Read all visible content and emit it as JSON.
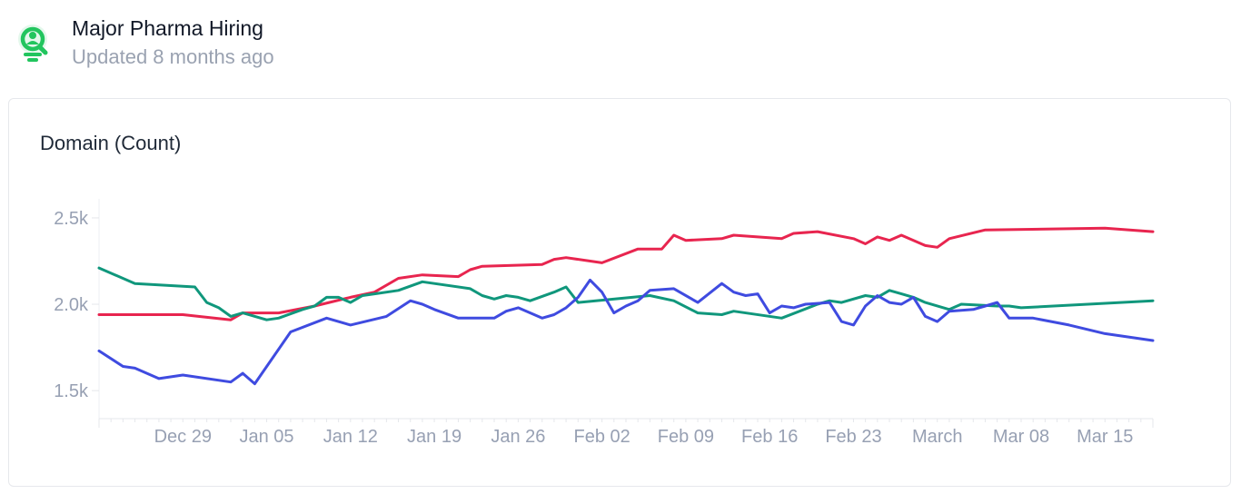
{
  "header": {
    "title": "Major Pharma Hiring",
    "subtitle": "Updated 8 months ago",
    "logo_icon": "magnifier-person-icon",
    "logo_color": "#22c55e"
  },
  "chart_data": {
    "type": "line",
    "title": "Domain (Count)",
    "x_tick_labels": [
      "Dec 29",
      "Jan 05",
      "Jan 12",
      "Jan 19",
      "Jan 26",
      "Feb 02",
      "Feb 09",
      "Feb 16",
      "Feb 23",
      "March",
      "Mar 08",
      "Mar 15"
    ],
    "y_tick_labels": [
      "2.5k",
      "2.0k",
      "1.5k"
    ],
    "y_ticks": [
      2500,
      2000,
      1500
    ],
    "ylim": [
      1380,
      2610
    ],
    "grid": false,
    "legend": "none",
    "series": [
      {
        "color": "#e8254f",
        "x": [
          "2023-12-22",
          "2023-12-29",
          "2024-01-02",
          "2024-01-03",
          "2024-01-06",
          "2024-01-09",
          "2024-01-12",
          "2024-01-14",
          "2024-01-16",
          "2024-01-18",
          "2024-01-21",
          "2024-01-22",
          "2024-01-23",
          "2024-01-28",
          "2024-01-29",
          "2024-01-30",
          "2024-02-02",
          "2024-02-05",
          "2024-02-07",
          "2024-02-08",
          "2024-02-09",
          "2024-02-12",
          "2024-02-13",
          "2024-02-17",
          "2024-02-18",
          "2024-02-20",
          "2024-02-23",
          "2024-02-24",
          "2024-02-25",
          "2024-02-26",
          "2024-02-27",
          "2024-02-29",
          "2024-03-01",
          "2024-03-02",
          "2024-03-05",
          "2024-03-15",
          "2024-03-19"
        ],
        "values": [
          1940,
          1940,
          1910,
          1950,
          1950,
          1990,
          2040,
          2070,
          2150,
          2170,
          2160,
          2200,
          2220,
          2230,
          2260,
          2270,
          2240,
          2320,
          2320,
          2400,
          2370,
          2380,
          2400,
          2380,
          2410,
          2420,
          2380,
          2350,
          2390,
          2370,
          2400,
          2340,
          2330,
          2380,
          2430,
          2440,
          2420
        ]
      },
      {
        "color": "#10977c",
        "x": [
          "2023-12-22",
          "2023-12-25",
          "2023-12-30",
          "2023-12-31",
          "2024-01-01",
          "2024-01-02",
          "2024-01-03",
          "2024-01-05",
          "2024-01-06",
          "2024-01-08",
          "2024-01-09",
          "2024-01-10",
          "2024-01-11",
          "2024-01-12",
          "2024-01-13",
          "2024-01-14",
          "2024-01-16",
          "2024-01-18",
          "2024-01-22",
          "2024-01-23",
          "2024-01-24",
          "2024-01-25",
          "2024-01-26",
          "2024-01-27",
          "2024-01-29",
          "2024-01-30",
          "2024-01-31",
          "2024-02-06",
          "2024-02-08",
          "2024-02-10",
          "2024-02-12",
          "2024-02-13",
          "2024-02-17",
          "2024-02-20",
          "2024-02-21",
          "2024-02-22",
          "2024-02-24",
          "2024-02-25",
          "2024-02-26",
          "2024-02-27",
          "2024-02-28",
          "2024-02-29",
          "2024-03-02",
          "2024-03-03",
          "2024-03-06",
          "2024-03-07",
          "2024-03-08",
          "2024-03-19"
        ],
        "values": [
          2210,
          2120,
          2100,
          2010,
          1980,
          1930,
          1950,
          1910,
          1920,
          1970,
          1990,
          2040,
          2040,
          2010,
          2050,
          2060,
          2080,
          2130,
          2090,
          2050,
          2030,
          2050,
          2040,
          2020,
          2070,
          2100,
          2010,
          2050,
          2020,
          1950,
          1940,
          1960,
          1920,
          2000,
          2020,
          2010,
          2050,
          2040,
          2080,
          2060,
          2040,
          2010,
          1970,
          2000,
          1990,
          1990,
          1980,
          2020
        ]
      },
      {
        "color": "#3f4be0",
        "x": [
          "2023-12-22",
          "2023-12-24",
          "2023-12-25",
          "2023-12-27",
          "2023-12-29",
          "2024-01-02",
          "2024-01-03",
          "2024-01-04",
          "2024-01-07",
          "2024-01-10",
          "2024-01-12",
          "2024-01-15",
          "2024-01-17",
          "2024-01-18",
          "2024-01-19",
          "2024-01-21",
          "2024-01-23",
          "2024-01-24",
          "2024-01-25",
          "2024-01-26",
          "2024-01-28",
          "2024-01-29",
          "2024-01-30",
          "2024-01-31",
          "2024-02-01",
          "2024-02-02",
          "2024-02-03",
          "2024-02-04",
          "2024-02-05",
          "2024-02-06",
          "2024-02-08",
          "2024-02-10",
          "2024-02-12",
          "2024-02-13",
          "2024-02-14",
          "2024-02-15",
          "2024-02-16",
          "2024-02-17",
          "2024-02-18",
          "2024-02-19",
          "2024-02-21",
          "2024-02-22",
          "2024-02-23",
          "2024-02-24",
          "2024-02-25",
          "2024-02-26",
          "2024-02-27",
          "2024-02-28",
          "2024-02-29",
          "2024-03-01",
          "2024-03-02",
          "2024-03-04",
          "2024-03-05",
          "2024-03-06",
          "2024-03-07",
          "2024-03-08",
          "2024-03-09",
          "2024-03-12",
          "2024-03-15",
          "2024-03-19"
        ],
        "values": [
          1730,
          1640,
          1630,
          1570,
          1590,
          1550,
          1600,
          1540,
          1840,
          1920,
          1880,
          1930,
          2020,
          2000,
          1970,
          1920,
          1920,
          1920,
          1960,
          1980,
          1920,
          1940,
          1980,
          2040,
          2140,
          2070,
          1950,
          1990,
          2020,
          2080,
          2090,
          2010,
          2120,
          2070,
          2050,
          2060,
          1950,
          1990,
          1980,
          2000,
          2010,
          1900,
          1880,
          1990,
          2050,
          2010,
          2000,
          2040,
          1930,
          1900,
          1960,
          1970,
          1990,
          2010,
          1920,
          1920,
          1920,
          1880,
          1830,
          1790
        ]
      }
    ]
  }
}
